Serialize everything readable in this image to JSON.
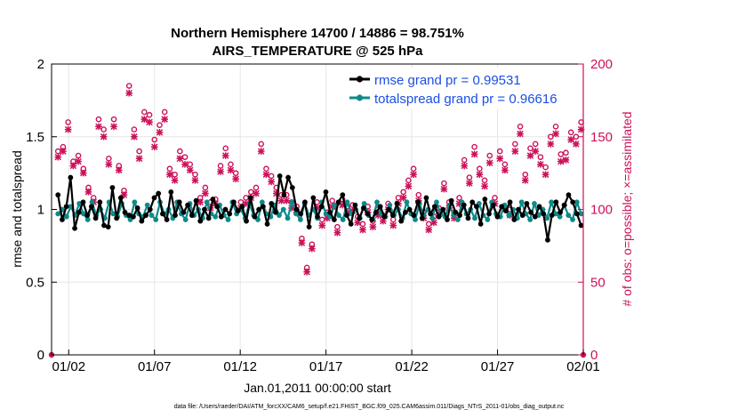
{
  "chart_data": {
    "type": "line",
    "title_line1": "Northern Hemisphere 14700 / 14886 = 98.751%",
    "title_line2": "AIRS_TEMPERATURE @ 525 hPa",
    "xlabel": "Jan.01,2011 00:00:00 start",
    "ylabel_left": "rmse and totalspread",
    "ylabel_right": "# of obs: o=possible; ×=assimilated",
    "ylim_left": [
      0,
      2
    ],
    "ylim_right": [
      0,
      200
    ],
    "xlim": [
      0,
      31
    ],
    "x_tick_labels": [
      "01/02",
      "01/07",
      "01/12",
      "01/17",
      "01/22",
      "01/27",
      "02/01"
    ],
    "x_tick_values": [
      1,
      6,
      11,
      16,
      21,
      26,
      31
    ],
    "y_ticks_left": [
      "0",
      "0.5",
      "1",
      "1.5",
      "2"
    ],
    "y_ticks_right": [
      "0",
      "50",
      "100",
      "150",
      "200"
    ],
    "legend": [
      "rmse grand pr = 0.99531",
      "totalspread grand pr = 0.96616"
    ],
    "footnote": "data file: /Users/raeder/DAI/ATM_forcXX/CAM6_setup/f.e21.FHIST_BGC.f09_025.CAM6assim.011/Diags_NTrS_2011-01/obs_diag_output.nc",
    "colors": {
      "rmse": "#000000",
      "spread": "#0e8a8a",
      "obs": "#cc1159",
      "grid": "#e6e6e6"
    },
    "series": [
      {
        "name": "rmse",
        "values": [
          1.1,
          0.93,
          1.02,
          1.22,
          0.87,
          0.98,
          1.05,
          0.96,
          1.02,
          0.94,
          1.05,
          0.89,
          0.88,
          1.15,
          0.94,
          1.08,
          0.98,
          0.96,
          0.95,
          1.01,
          0.92,
          0.96,
          1.0,
          1.08,
          1.11,
          0.97,
          0.93,
          1.12,
          0.96,
          1.05,
          0.98,
          1.03,
          0.96,
          1.06,
          0.92,
          1.0,
          0.94,
          1.07,
          1.02,
          0.95,
          1.0,
          0.97,
          1.05,
          0.99,
          1.02,
          0.92,
          1.08,
          0.95,
          1.0,
          1.02,
          0.9,
          1.04,
          0.98,
          1.23,
          1.1,
          1.22,
          1.15,
          1.0,
          0.97,
          1.05,
          0.88,
          1.08,
          0.95,
          1.02,
          1.12,
          0.98,
          0.93,
          1.05,
          1.1,
          0.96,
          0.9,
          1.03,
          0.94,
          1.01,
          0.97,
          0.93,
          0.98,
          1.02,
          0.95,
          1.0,
          0.96,
          1.04,
          0.92,
          0.98,
          1.0,
          0.96,
          1.05,
          0.94,
          1.08,
          0.97,
          1.02,
          0.95,
          1.0,
          0.93,
          1.06,
          0.98,
          0.96,
          1.03,
          0.94,
          1.05,
          1.02,
          0.9,
          1.07,
          0.97,
          1.03,
          0.95,
          1.02,
          0.99,
          1.05,
          0.93,
          1.0,
          0.96,
          1.04,
          0.98,
          0.95,
          1.02,
          0.97,
          0.79,
          0.96,
          1.05,
          0.98,
          1.03,
          1.1,
          1.05,
          0.97,
          0.89
        ]
      },
      {
        "name": "totalspread",
        "values": [
          0.97,
          1.0,
          0.95,
          1.02,
          0.96,
          1.04,
          0.97,
          0.93,
          1.05,
          0.96,
          1.0,
          0.94,
          1.05,
          0.97,
          0.95,
          1.04,
          0.96,
          0.93,
          1.05,
          0.97,
          0.95,
          1.03,
          0.96,
          0.93,
          1.05,
          0.97,
          1.0,
          0.94,
          1.05,
          0.97,
          0.93,
          1.04,
          0.96,
          1.0,
          0.94,
          1.05,
          0.97,
          0.95,
          1.03,
          0.96,
          0.93,
          1.05,
          0.97,
          1.0,
          0.94,
          1.04,
          0.96,
          0.93,
          1.05,
          0.97,
          0.95,
          1.03,
          0.96,
          1.0,
          0.94,
          1.05,
          0.97,
          0.93,
          1.04,
          0.96,
          1.0,
          0.94,
          1.05,
          0.97,
          0.95,
          1.03,
          0.96,
          0.93,
          1.05,
          0.97,
          1.0,
          0.94,
          1.04,
          0.96,
          0.93,
          1.05,
          0.97,
          0.95,
          1.03,
          0.96,
          1.0,
          0.94,
          1.05,
          0.97,
          0.93,
          1.04,
          0.96,
          1.0,
          0.94,
          1.05,
          0.97,
          0.95,
          1.03,
          0.96,
          0.93,
          1.05,
          0.97,
          1.0,
          0.94,
          1.04,
          0.96,
          0.93,
          1.05,
          0.97,
          0.95,
          1.03,
          0.96,
          1.0,
          0.94,
          1.05,
          0.97,
          0.93,
          1.04,
          0.96,
          1.0,
          0.94,
          1.05,
          0.97,
          0.95,
          1.03,
          0.96,
          0.93,
          1.05,
          0.97
        ]
      },
      {
        "name": "obs_possible",
        "values": [
          140,
          143,
          160,
          133,
          137,
          128,
          115,
          108,
          162,
          155,
          135,
          162,
          130,
          113,
          185,
          155,
          140,
          167,
          165,
          148,
          158,
          167,
          128,
          124,
          140,
          136,
          131,
          124,
          108,
          115,
          105,
          107,
          130,
          142,
          131,
          125,
          105,
          108,
          112,
          115,
          145,
          128,
          123,
          115,
          110,
          110,
          105,
          102,
          80,
          60,
          76,
          105,
          93,
          98,
          106,
          88,
          107,
          102,
          103,
          95,
          90,
          102,
          92,
          100,
          96,
          104,
          93,
          108,
          112,
          120,
          128,
          110,
          98,
          90,
          95,
          101,
          118,
          105,
          98,
          108,
          134,
          122,
          143,
          128,
          120,
          137,
          108,
          140,
          131,
          100,
          145,
          157,
          124,
          142,
          145,
          136,
          129,
          150,
          157,
          138,
          139,
          153,
          150,
          160
        ]
      },
      {
        "name": "obs_assimilated",
        "values": [
          136,
          140,
          155,
          130,
          133,
          125,
          112,
          105,
          157,
          150,
          131,
          157,
          127,
          110,
          180,
          150,
          135,
          162,
          160,
          143,
          153,
          162,
          124,
          120,
          135,
          131,
          127,
          120,
          105,
          111,
          101,
          104,
          126,
          137,
          127,
          121,
          101,
          104,
          108,
          111,
          140,
          124,
          119,
          111,
          106,
          106,
          101,
          98,
          77,
          57,
          73,
          101,
          89,
          94,
          102,
          84,
          103,
          98,
          99,
          91,
          86,
          98,
          88,
          96,
          92,
          100,
          89,
          104,
          108,
          116,
          124,
          106,
          94,
          86,
          91,
          97,
          114,
          101,
          94,
          104,
          130,
          118,
          138,
          124,
          116,
          132,
          104,
          135,
          127,
          96,
          140,
          152,
          120,
          137,
          140,
          131,
          124,
          145,
          152,
          133,
          134,
          148,
          145,
          155
        ]
      }
    ]
  }
}
